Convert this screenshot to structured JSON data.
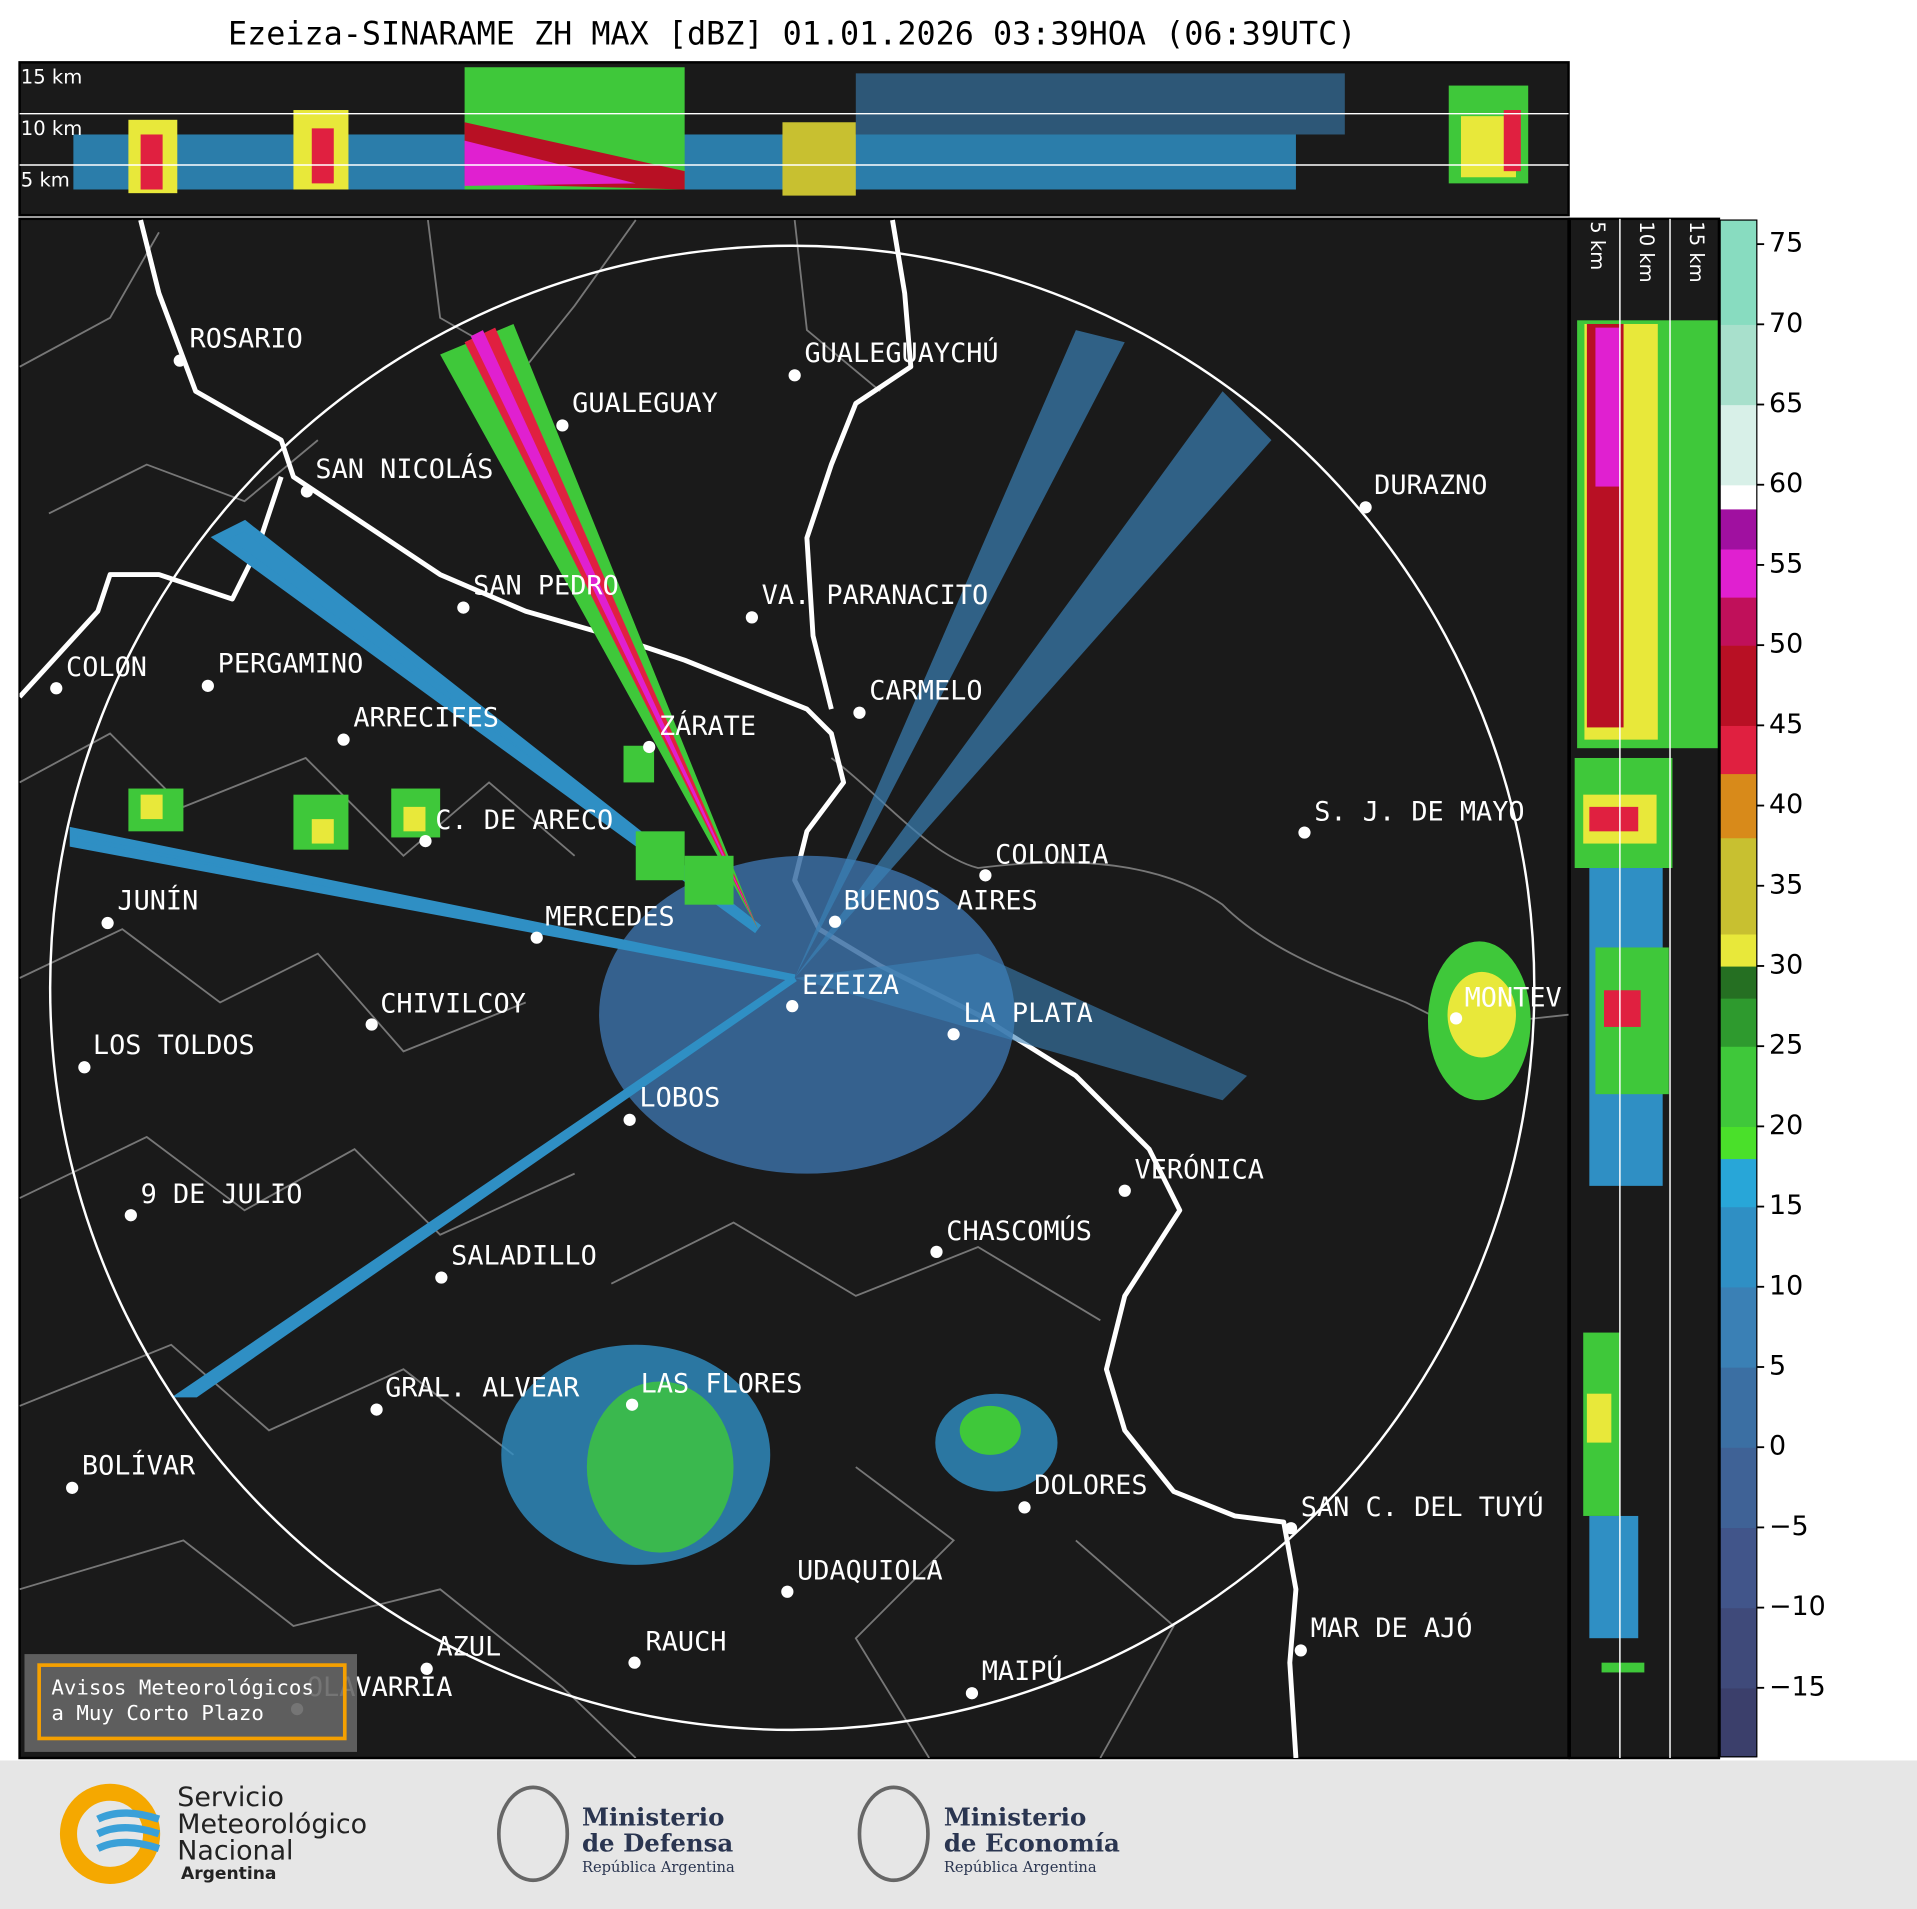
{
  "title": "Ezeiza-SINARAME ZH MAX [dBZ] 01.01.2026 03:39HOA (06:39UTC)",
  "top_panel_labels": [
    "15 km",
    "10 km",
    "5 km"
  ],
  "side_panel_labels": [
    "5 km",
    "10 km",
    "15 km"
  ],
  "cities": [
    "ROSARIO",
    "GUALEGUAYCHÚ",
    "GUALEGUAY",
    "SAN NICOLÁS",
    "DURAZNO",
    "SAN PEDRO",
    "VA. PARANACITO",
    "COLON",
    "PERGAMINO",
    "CARMELO",
    "ARRECIFES",
    "ZÁRATE",
    "S. J. DE MAYO",
    "C. DE ARECO",
    "COLONIA",
    "BUENOS AIRES",
    "JUNÍN",
    "MERCEDES",
    "EZEIZA",
    "MONTEV",
    "LA PLATA",
    "CHIVILCOY",
    "LOS TOLDOS",
    "LOBOS",
    "VERÓNICA",
    "9 DE JULIO",
    "CHASCOMÚS",
    "SALADILLO",
    "GRAL. ALVEAR",
    "LAS FLORES",
    "BOLÍVAR",
    "DOLORES",
    "SAN C. DEL TUYÚ",
    "UDAQUIOLA",
    "MAR DE AJÓ",
    "AZUL",
    "RAUCH",
    "OLAVARRÍA",
    "MAIPÚ"
  ],
  "notice": [
    "Avisos Meteorológicos",
    "a Muy Corto Plazo"
  ],
  "colorbar": {
    "ylim": [
      -19.3,
      76.5
    ],
    "ticks": [
      75,
      70,
      65,
      60,
      55,
      50,
      45,
      40,
      35,
      30,
      25,
      20,
      15,
      10,
      {
        "value": 5,
        "label": "5"
      },
      {
        "value": 0,
        "label": "0"
      },
      {
        "value": -5,
        "label": "−5"
      },
      {
        "value": -10,
        "label": "−10"
      },
      {
        "value": -15,
        "label": "−15"
      }
    ],
    "bands": [
      {
        "from": -19.3,
        "to": -15,
        "color": "#3b3f6b"
      },
      {
        "from": -15,
        "to": -10,
        "color": "#3f4a7a"
      },
      {
        "from": -10,
        "to": -5,
        "color": "#41558a"
      },
      {
        "from": -5,
        "to": 0,
        "color": "#3f6296"
      },
      {
        "from": 0,
        "to": 5,
        "color": "#3b6fa3"
      },
      {
        "from": 5,
        "to": 10,
        "color": "#3a80b5"
      },
      {
        "from": 10,
        "to": 15,
        "color": "#2f8fc4"
      },
      {
        "from": 15,
        "to": 18,
        "color": "#28a6d8"
      },
      {
        "from": 18,
        "to": 20,
        "color": "#4ae02a"
      },
      {
        "from": 20,
        "to": 25,
        "color": "#3fc83a"
      },
      {
        "from": 25,
        "to": 28,
        "color": "#2e9a2e"
      },
      {
        "from": 28,
        "to": 30,
        "color": "#256f22"
      },
      {
        "from": 30,
        "to": 32,
        "color": "#e8e83a"
      },
      {
        "from": 32,
        "to": 38,
        "color": "#c8c030"
      },
      {
        "from": 38,
        "to": 42,
        "color": "#d88a1a"
      },
      {
        "from": 42,
        "to": 45,
        "color": "#e02040"
      },
      {
        "from": 45,
        "to": 50,
        "color": "#b81024"
      },
      {
        "from": 50,
        "to": 53,
        "color": "#c0105a"
      },
      {
        "from": 53,
        "to": 56,
        "color": "#e020d0"
      },
      {
        "from": 56,
        "to": 58.5,
        "color": "#a010a0"
      },
      {
        "from": 58.5,
        "to": 60,
        "color": "#ffffff"
      },
      {
        "from": 60,
        "to": 65,
        "color": "#d8f0e8"
      },
      {
        "from": 65,
        "to": 70,
        "color": "#a8e0cc"
      },
      {
        "from": 70,
        "to": 76.5,
        "color": "#88dcc0"
      }
    ]
  },
  "logos": {
    "smn": [
      "Servicio",
      "Meteorológico",
      "Nacional",
      "Argentina"
    ],
    "defensa": [
      "Ministerio",
      "de Defensa",
      "República Argentina"
    ],
    "economia": [
      "Ministerio",
      "de Economía",
      "República Argentina"
    ]
  }
}
